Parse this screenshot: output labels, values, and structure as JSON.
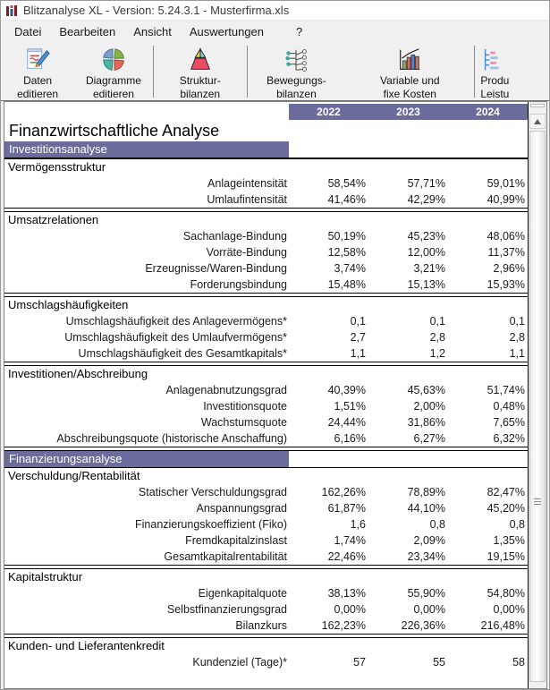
{
  "window": {
    "title": "Blitzanalyse XL - Version: 5.24.3.1 - Musterfirma.xls",
    "icon": "app-icon"
  },
  "menu": {
    "items": [
      {
        "label": "Datei"
      },
      {
        "label": "Bearbeiten"
      },
      {
        "label": "Ansicht"
      },
      {
        "label": "Auswertungen"
      },
      {
        "label": "?"
      }
    ]
  },
  "toolbar": {
    "buttons": [
      {
        "label": "Daten\neditieren",
        "icon": "document-pencil-icon"
      },
      {
        "label": "Diagramme\neditieren",
        "icon": "pie-chart-icon"
      },
      {
        "label": "Struktur-\nbilanzen",
        "icon": "pyramid-icon"
      },
      {
        "label": "Bewegungs-\nbilanzen",
        "icon": "node-tree-icon"
      },
      {
        "label": "Variable und\nfixe Kosten",
        "icon": "bar-chart-icon"
      },
      {
        "label": "Produ\nLeistu",
        "icon": "clipped-chart-icon"
      }
    ]
  },
  "report": {
    "accent_color": "#6c6c9c",
    "title": "Finanzwirtschaftliche Analyse",
    "years": [
      "2022",
      "2023",
      "2024"
    ],
    "blocks": [
      {
        "kind": "band",
        "title": "Investitionsanalyse"
      },
      {
        "kind": "section",
        "title": "Vermögensstruktur",
        "rows": [
          {
            "label": "Anlageintensität",
            "values": [
              "58,54%",
              "57,71%",
              "59,01%"
            ]
          },
          {
            "label": "Umlaufintensität",
            "values": [
              "41,46%",
              "42,29%",
              "40,99%"
            ]
          }
        ]
      },
      {
        "kind": "section",
        "title": "Umsatzrelationen",
        "rows": [
          {
            "label": "Sachanlage-Bindung",
            "values": [
              "50,19%",
              "45,23%",
              "48,06%"
            ]
          },
          {
            "label": "Vorräte-Bindung",
            "values": [
              "12,58%",
              "12,00%",
              "11,37%"
            ]
          },
          {
            "label": "Erzeugnisse/Waren-Bindung",
            "values": [
              "3,74%",
              "3,21%",
              "2,96%"
            ]
          },
          {
            "label": "Forderungsbindung",
            "values": [
              "15,48%",
              "15,13%",
              "15,93%"
            ]
          }
        ]
      },
      {
        "kind": "section",
        "title": "Umschlagshäufigkeiten",
        "rows": [
          {
            "label": "Umschlagshäufigkeit des Anlagevermögens*",
            "values": [
              "0,1",
              "0,1",
              "0,1"
            ]
          },
          {
            "label": "Umschlagshäufigkeit des Umlaufvermögens*",
            "values": [
              "2,7",
              "2,8",
              "2,8"
            ]
          },
          {
            "label": "Umschlagshäufigkeit des Gesamtkapitals*",
            "values": [
              "1,1",
              "1,2",
              "1,1"
            ]
          }
        ]
      },
      {
        "kind": "section",
        "title": "Investitionen/Abschreibung",
        "rows": [
          {
            "label": "Anlagenabnutzungsgrad",
            "values": [
              "40,39%",
              "45,63%",
              "51,74%"
            ]
          },
          {
            "label": "Investitionsquote",
            "values": [
              "1,51%",
              "2,00%",
              "0,48%"
            ]
          },
          {
            "label": "Wachstumsquote",
            "values": [
              "24,44%",
              "31,86%",
              "7,65%"
            ]
          },
          {
            "label": "Abschreibungsquote (historische Anschaffung)",
            "values": [
              "6,16%",
              "6,27%",
              "6,32%"
            ]
          }
        ]
      },
      {
        "kind": "band",
        "title": "Finanzierungsanalyse"
      },
      {
        "kind": "section",
        "title": "Verschuldung/Rentabilität",
        "rows": [
          {
            "label": "Statischer Verschuldungsgrad",
            "values": [
              "162,26%",
              "78,89%",
              "82,47%"
            ]
          },
          {
            "label": "Anspannungsgrad",
            "values": [
              "61,87%",
              "44,10%",
              "45,20%"
            ]
          },
          {
            "label": "Finanzierungskoeffizient (Fiko)",
            "values": [
              "1,6",
              "0,8",
              "0,8"
            ]
          },
          {
            "label": "Fremdkapitalzinslast",
            "values": [
              "1,74%",
              "2,09%",
              "1,35%"
            ]
          },
          {
            "label": "Gesamtkapitalrentabilität",
            "values": [
              "22,46%",
              "23,34%",
              "19,15%"
            ]
          }
        ]
      },
      {
        "kind": "section",
        "title": "Kapitalstruktur",
        "rows": [
          {
            "label": "Eigenkapitalquote",
            "values": [
              "38,13%",
              "55,90%",
              "54,80%"
            ]
          },
          {
            "label": "Selbstfinanzierungsgrad",
            "values": [
              "0,00%",
              "0,00%",
              "0,00%"
            ]
          },
          {
            "label": "Bilanzkurs",
            "values": [
              "162,23%",
              "226,36%",
              "216,48%"
            ]
          }
        ]
      },
      {
        "kind": "section",
        "title": "Kunden- und Lieferantenkredit",
        "rows": [
          {
            "label": "Kundenziel (Tage)*",
            "values": [
              "57",
              "55",
              "58"
            ]
          }
        ]
      }
    ]
  }
}
